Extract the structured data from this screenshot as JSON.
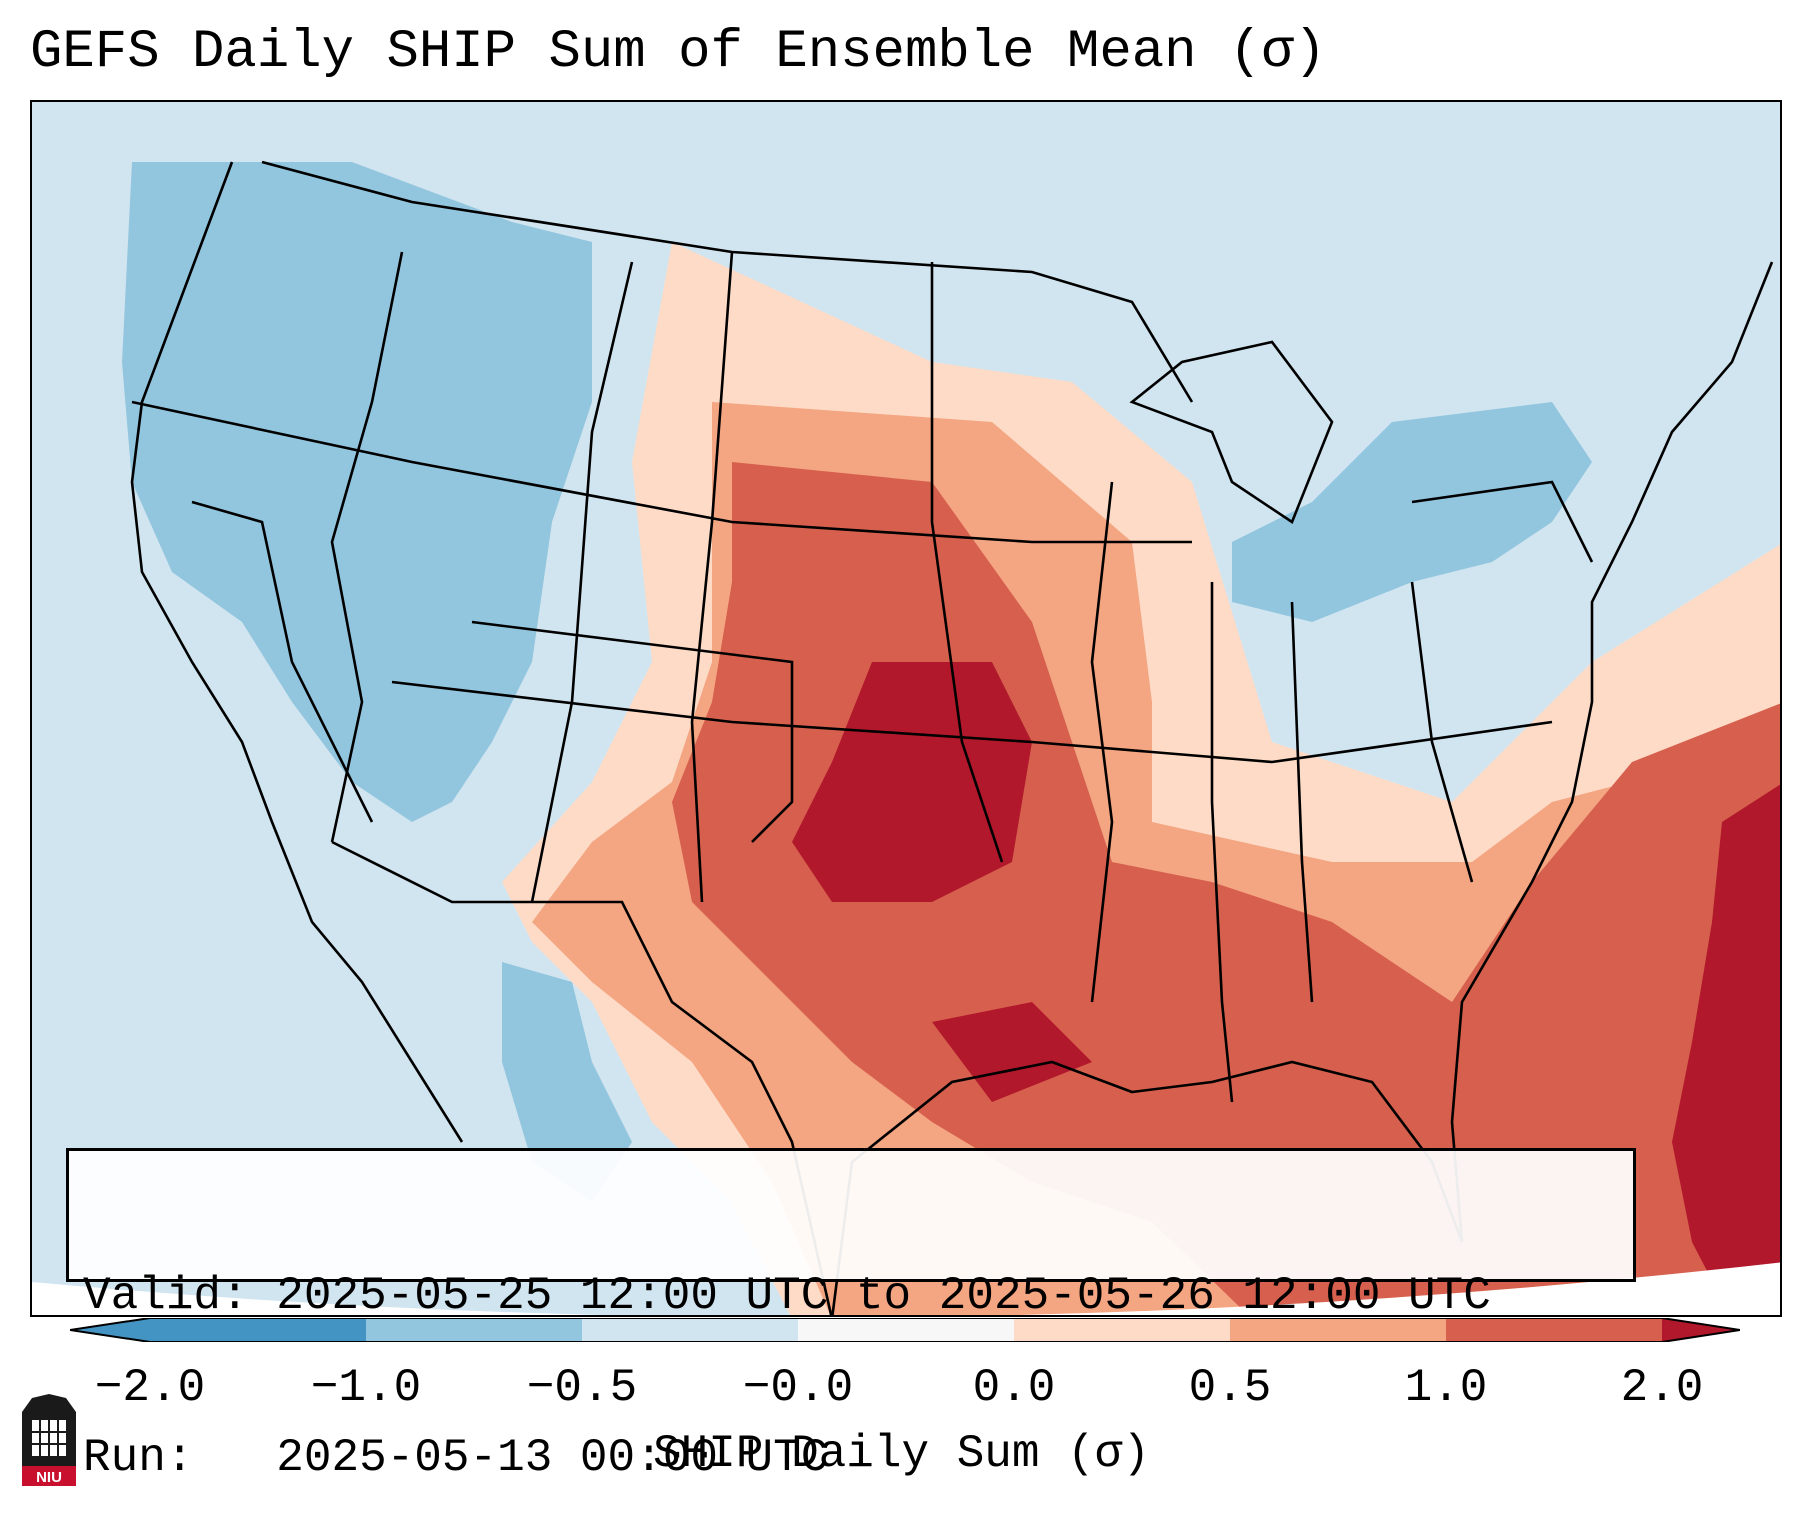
{
  "title": "GEFS Daily SHIP Sum of Ensemble Mean (σ)",
  "info": {
    "valid_label": "Valid:",
    "valid_value": "2025-05-25 12:00 UTC to 2025-05-26 12:00 UTC",
    "run_label": "Run:",
    "run_value": "2025-05-13 00:00 UTC"
  },
  "colorbar": {
    "label": "SHIP Daily Sum (σ)",
    "ticks": [
      "−2.0",
      "−1.0",
      "−0.5",
      "−0.0",
      "0.0",
      "0.5",
      "1.0",
      "2.0"
    ],
    "colors": [
      "#4393c3",
      "#92c5de",
      "#d1e5f0",
      "#f7f7f7",
      "#fddbc7",
      "#f4a582",
      "#d6604d",
      "#b2182b"
    ],
    "extend": "both"
  },
  "logo": {
    "text": "NIU",
    "color": "#c8102e"
  }
}
